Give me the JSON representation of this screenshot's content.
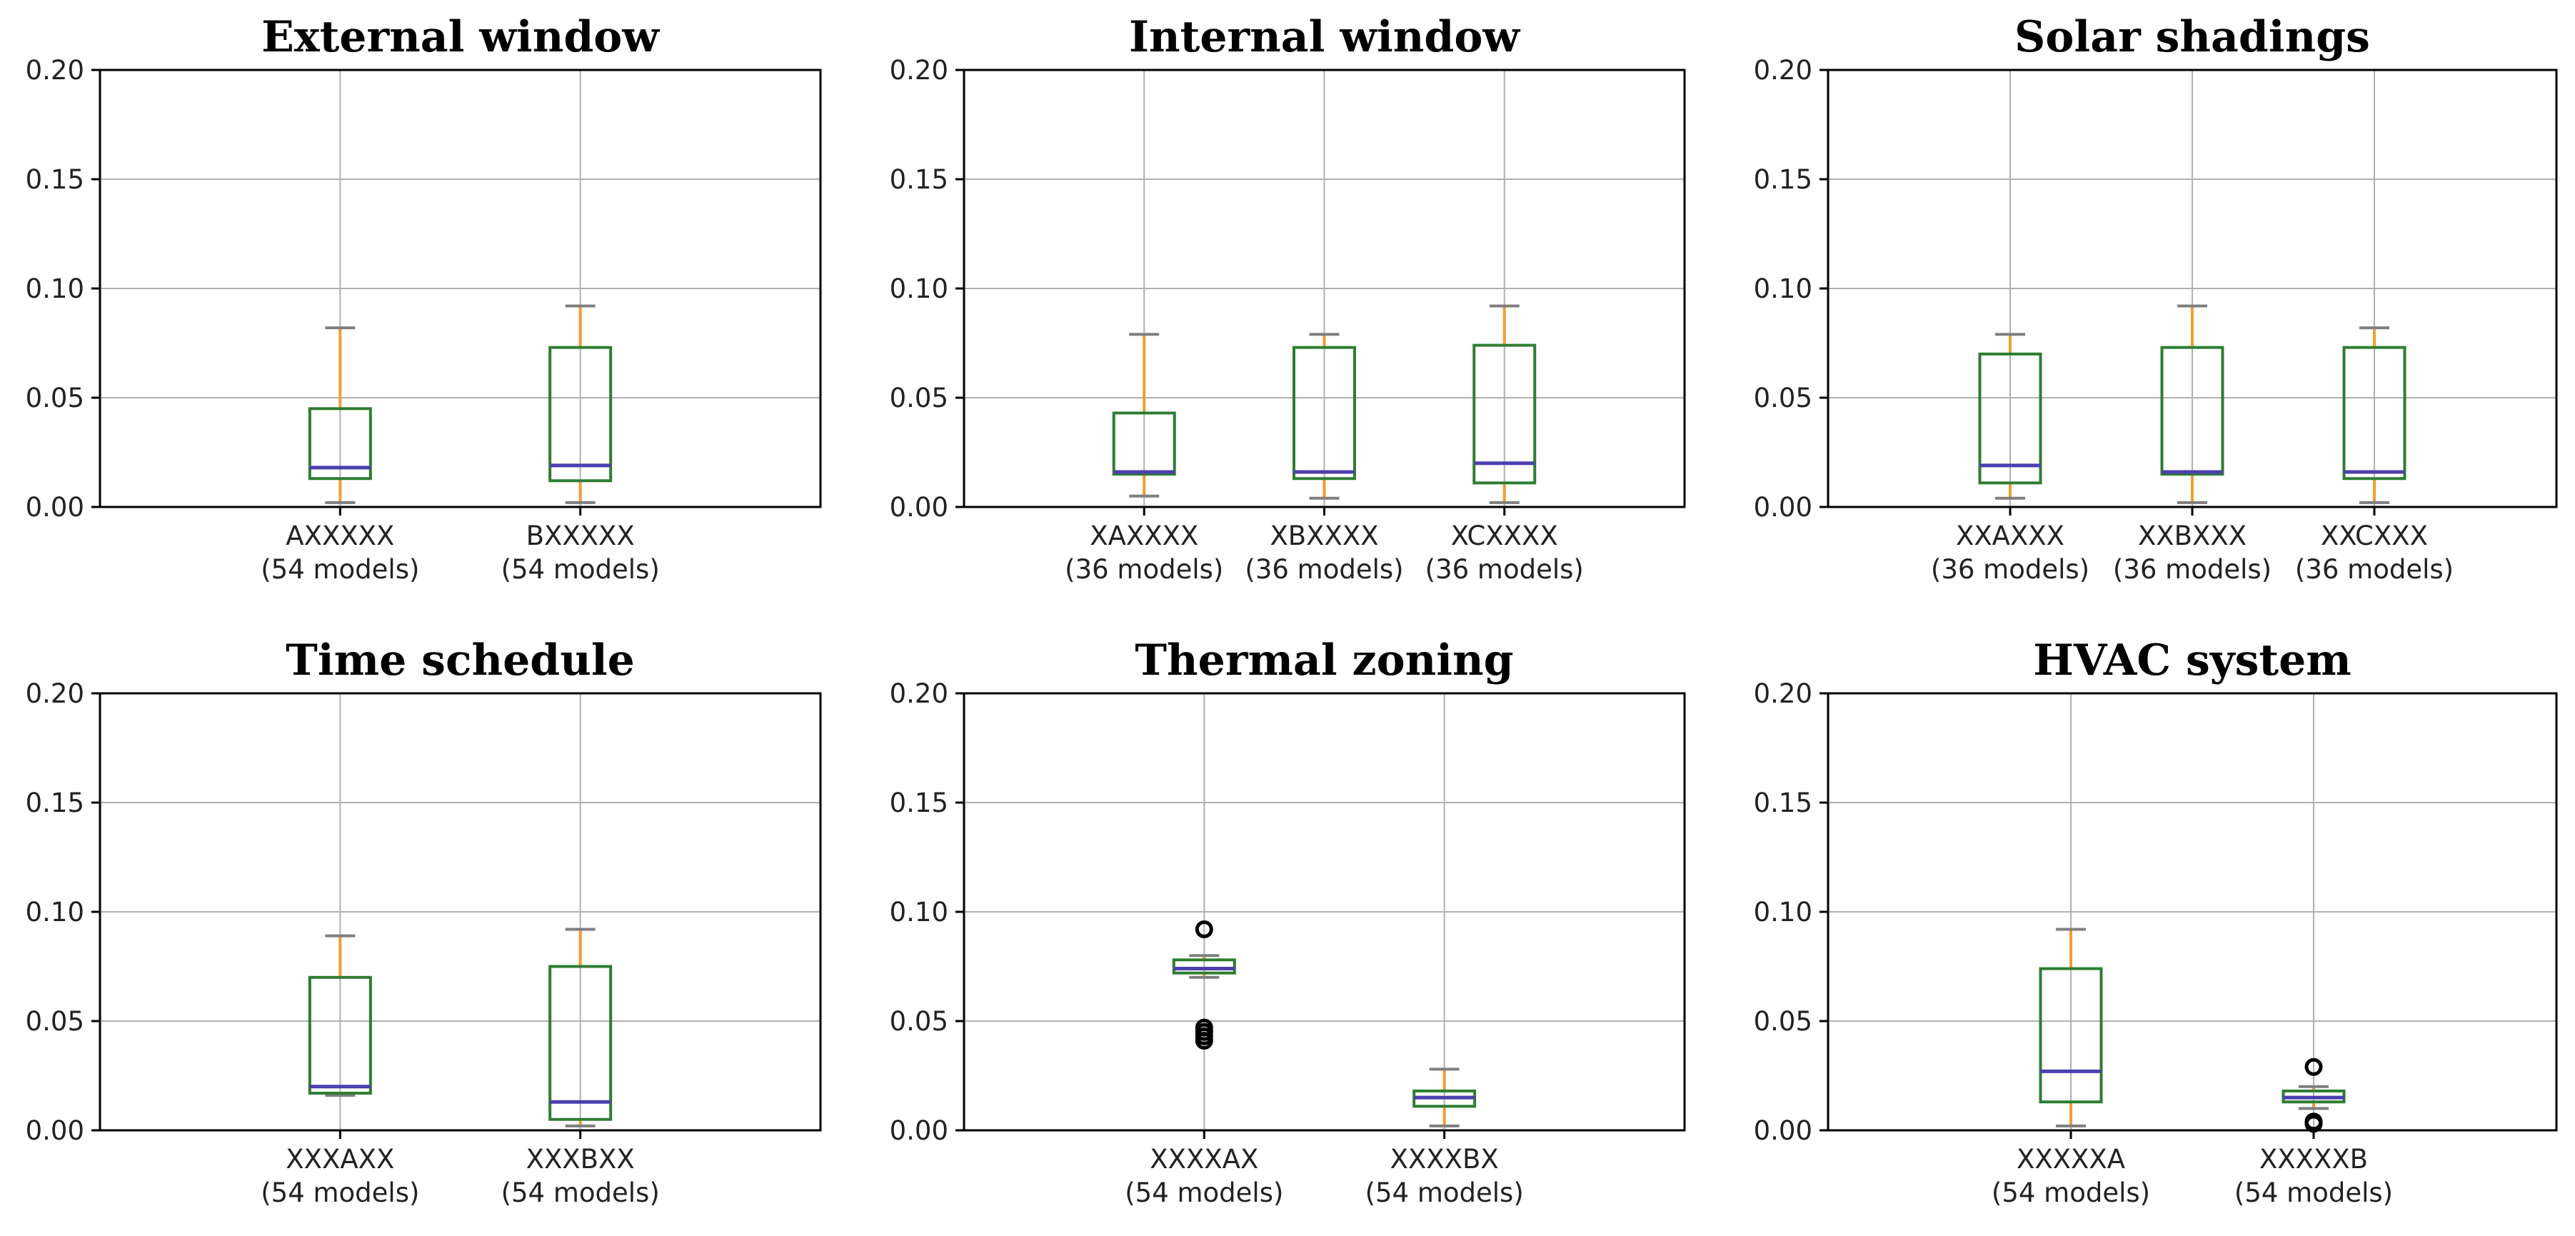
{
  "chart_data": [
    {
      "type": "box",
      "title": "External window",
      "ylim": [
        0,
        0.2
      ],
      "yticks": [
        "0.00",
        "0.05",
        "0.10",
        "0.15",
        "0.20"
      ],
      "yticks_values": [
        0,
        0.05,
        0.1,
        0.15,
        0.2
      ],
      "grid": true,
      "boxes": [
        {
          "name": "AXXXXX",
          "count_label": "(54 models)",
          "whisker_low": 0.002,
          "q1": 0.013,
          "median": 0.018,
          "q3": 0.045,
          "whisker_high": 0.082,
          "fliers": []
        },
        {
          "name": "BXXXXX",
          "count_label": "(54 models)",
          "whisker_low": 0.002,
          "q1": 0.012,
          "median": 0.019,
          "q3": 0.073,
          "whisker_high": 0.092,
          "fliers": []
        }
      ]
    },
    {
      "type": "box",
      "title": "Internal window",
      "ylim": [
        0,
        0.2
      ],
      "yticks": [
        "0.00",
        "0.05",
        "0.10",
        "0.15",
        "0.20"
      ],
      "yticks_values": [
        0,
        0.05,
        0.1,
        0.15,
        0.2
      ],
      "grid": true,
      "boxes": [
        {
          "name": "XAXXXX",
          "count_label": "(36 models)",
          "whisker_low": 0.005,
          "q1": 0.015,
          "median": 0.016,
          "q3": 0.043,
          "whisker_high": 0.079,
          "fliers": []
        },
        {
          "name": "XBXXXX",
          "count_label": "(36 models)",
          "whisker_low": 0.004,
          "q1": 0.013,
          "median": 0.016,
          "q3": 0.073,
          "whisker_high": 0.079,
          "fliers": []
        },
        {
          "name": "XCXXXX",
          "count_label": "(36 models)",
          "whisker_low": 0.002,
          "q1": 0.011,
          "median": 0.02,
          "q3": 0.074,
          "whisker_high": 0.092,
          "fliers": []
        }
      ]
    },
    {
      "type": "box",
      "title": "Solar shadings",
      "ylim": [
        0,
        0.2
      ],
      "yticks": [
        "0.00",
        "0.05",
        "0.10",
        "0.15",
        "0.20"
      ],
      "yticks_values": [
        0,
        0.05,
        0.1,
        0.15,
        0.2
      ],
      "grid": true,
      "boxes": [
        {
          "name": "XXAXXX",
          "count_label": "(36 models)",
          "whisker_low": 0.004,
          "q1": 0.011,
          "median": 0.019,
          "q3": 0.07,
          "whisker_high": 0.079,
          "fliers": []
        },
        {
          "name": "XXBXXX",
          "count_label": "(36 models)",
          "whisker_low": 0.002,
          "q1": 0.015,
          "median": 0.016,
          "q3": 0.073,
          "whisker_high": 0.092,
          "fliers": []
        },
        {
          "name": "XXCXXX",
          "count_label": "(36 models)",
          "whisker_low": 0.002,
          "q1": 0.013,
          "median": 0.016,
          "q3": 0.073,
          "whisker_high": 0.082,
          "fliers": []
        }
      ]
    },
    {
      "type": "box",
      "title": "Time schedule",
      "ylim": [
        0,
        0.2
      ],
      "yticks": [
        "0.00",
        "0.05",
        "0.10",
        "0.15",
        "0.20"
      ],
      "yticks_values": [
        0,
        0.05,
        0.1,
        0.15,
        0.2
      ],
      "grid": true,
      "boxes": [
        {
          "name": "XXXAXX",
          "count_label": "(54 models)",
          "whisker_low": 0.016,
          "q1": 0.017,
          "median": 0.02,
          "q3": 0.07,
          "whisker_high": 0.089,
          "fliers": []
        },
        {
          "name": "XXXBXX",
          "count_label": "(54 models)",
          "whisker_low": 0.002,
          "q1": 0.005,
          "median": 0.013,
          "q3": 0.075,
          "whisker_high": 0.092,
          "fliers": []
        }
      ]
    },
    {
      "type": "box",
      "title": "Thermal zoning",
      "ylim": [
        0,
        0.2
      ],
      "yticks": [
        "0.00",
        "0.05",
        "0.10",
        "0.15",
        "0.20"
      ],
      "yticks_values": [
        0,
        0.05,
        0.1,
        0.15,
        0.2
      ],
      "grid": true,
      "boxes": [
        {
          "name": "XXXXAX",
          "count_label": "(54 models)",
          "whisker_low": 0.07,
          "q1": 0.072,
          "median": 0.074,
          "q3": 0.078,
          "whisker_high": 0.08,
          "fliers": [
            0.092,
            0.047,
            0.045,
            0.043,
            0.041
          ]
        },
        {
          "name": "XXXXBX",
          "count_label": "(54 models)",
          "whisker_low": 0.002,
          "q1": 0.011,
          "median": 0.015,
          "q3": 0.018,
          "whisker_high": 0.028,
          "fliers": []
        }
      ]
    },
    {
      "type": "box",
      "title": "HVAC system",
      "ylim": [
        0,
        0.2
      ],
      "yticks": [
        "0.00",
        "0.05",
        "0.10",
        "0.15",
        "0.20"
      ],
      "yticks_values": [
        0,
        0.05,
        0.1,
        0.15,
        0.2
      ],
      "grid": true,
      "boxes": [
        {
          "name": "XXXXXA",
          "count_label": "(54 models)",
          "whisker_low": 0.002,
          "q1": 0.013,
          "median": 0.027,
          "q3": 0.074,
          "whisker_high": 0.092,
          "fliers": []
        },
        {
          "name": "XXXXXB",
          "count_label": "(54 models)",
          "whisker_low": 0.01,
          "q1": 0.013,
          "median": 0.015,
          "q3": 0.018,
          "whisker_high": 0.02,
          "fliers": [
            0.029,
            0.004,
            0.003
          ]
        }
      ]
    }
  ]
}
